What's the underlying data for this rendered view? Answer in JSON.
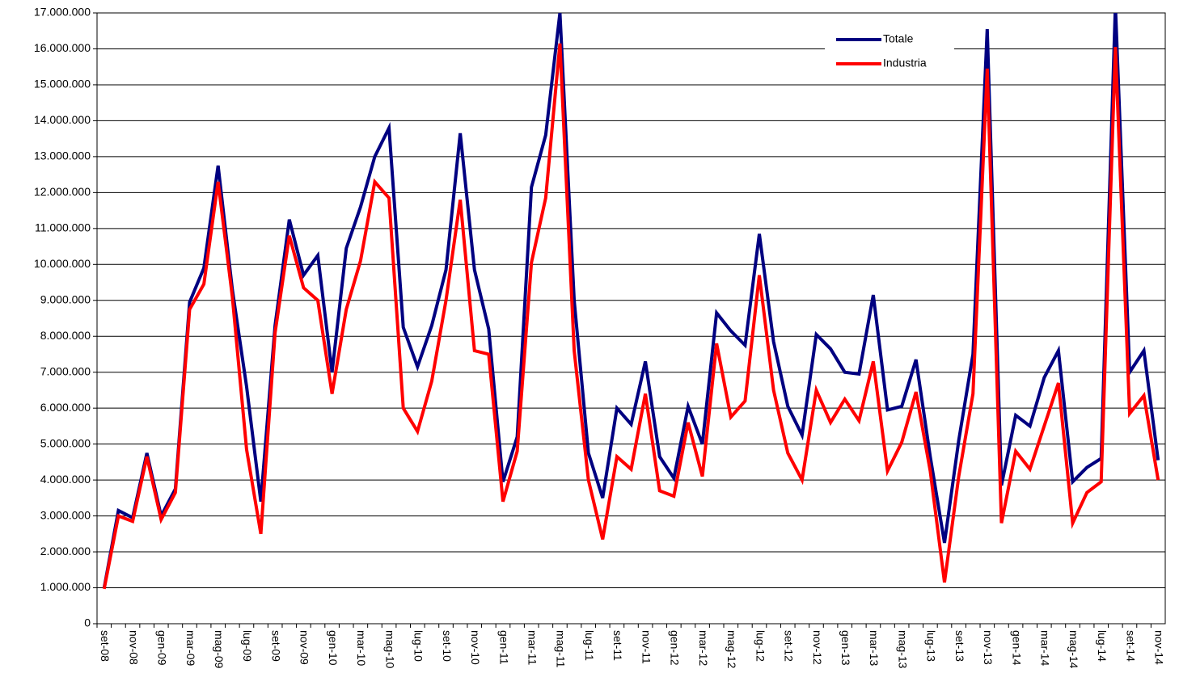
{
  "chart_data": {
    "type": "line",
    "categories": [
      "set-08",
      null,
      "nov-08",
      null,
      "gen-09",
      null,
      "mar-09",
      null,
      "mag-09",
      null,
      "lug-09",
      null,
      "set-09",
      null,
      "nov-09",
      null,
      "gen-10",
      null,
      "mar-10",
      null,
      "mag-10",
      null,
      "lug-10",
      null,
      "set-10",
      null,
      "nov-10",
      null,
      "gen-11",
      null,
      "mar-11",
      null,
      "mag-11",
      null,
      "lug-11",
      null,
      "set-11",
      null,
      "nov-11",
      null,
      "gen-12",
      null,
      "mar-12",
      null,
      "mag-12",
      null,
      "lug-12",
      null,
      "set-12",
      null,
      "nov-12",
      null,
      "gen-13",
      null,
      "mar-13",
      null,
      "mag-13",
      null,
      "lug-13",
      null,
      "set-13",
      null,
      "nov-13",
      null,
      "gen-14",
      null,
      "mar-14",
      null,
      "mag-14",
      null,
      "lug-14",
      null,
      "set-14",
      null,
      "nov-14"
    ],
    "series": [
      {
        "name": "Totale",
        "color": "#000080",
        "values": [
          1000000,
          3150000,
          2950000,
          4750000,
          3000000,
          3750000,
          8950000,
          9900000,
          12750000,
          9300000,
          6600000,
          3400000,
          8300000,
          11250000,
          9700000,
          10250000,
          7000000,
          10450000,
          11600000,
          13000000,
          13800000,
          8250000,
          7150000,
          8300000,
          9850000,
          13650000,
          9850000,
          8200000,
          3950000,
          5200000,
          12150000,
          13600000,
          17000000,
          9000000,
          4750000,
          3500000,
          6000000,
          5550000,
          7300000,
          4650000,
          4050000,
          6050000,
          5000000,
          8650000,
          8150000,
          7750000,
          10850000,
          7850000,
          6050000,
          5250000,
          8050000,
          7650000,
          7000000,
          6950000,
          9150000,
          5950000,
          6050000,
          7350000,
          4650000,
          2250000,
          5100000,
          7500000,
          16550000,
          3850000,
          5800000,
          5500000,
          6850000,
          7600000,
          3950000,
          4350000,
          4600000,
          17200000,
          7000000,
          7600000,
          4550000
        ]
      },
      {
        "name": "Industria",
        "color": "#ff0000",
        "values": [
          970000,
          3000000,
          2850000,
          4650000,
          2900000,
          3650000,
          8750000,
          9450000,
          12300000,
          9100000,
          4850000,
          2500000,
          8100000,
          10800000,
          9350000,
          9000000,
          6400000,
          8750000,
          10100000,
          12300000,
          11850000,
          6000000,
          5350000,
          6750000,
          9000000,
          11800000,
          7600000,
          7500000,
          3400000,
          4800000,
          10050000,
          11850000,
          16150000,
          7600000,
          4000000,
          2350000,
          4650000,
          4300000,
          6400000,
          3700000,
          3550000,
          5600000,
          4100000,
          7800000,
          5750000,
          6200000,
          9700000,
          6500000,
          4750000,
          4000000,
          6500000,
          5600000,
          6250000,
          5650000,
          7300000,
          4250000,
          5050000,
          6450000,
          4250000,
          1150000,
          4100000,
          6400000,
          15450000,
          2800000,
          4800000,
          4300000,
          5500000,
          6700000,
          2800000,
          3650000,
          3950000,
          16050000,
          5850000,
          6350000,
          4000000
        ]
      }
    ],
    "ylim": [
      0,
      17000000
    ],
    "yticks": [
      0,
      {
        "value": 1000000,
        "label": "1.000.000"
      },
      {
        "value": 2000000,
        "label": "2.000.000"
      },
      {
        "value": 3000000,
        "label": "3.000.000"
      },
      {
        "value": 4000000,
        "label": "4.000.000"
      },
      {
        "value": 5000000,
        "label": "5.000.000"
      },
      {
        "value": 6000000,
        "label": "6.000.000"
      },
      {
        "value": 7000000,
        "label": "7.000.000"
      },
      {
        "value": 8000000,
        "label": "8.000.000"
      },
      {
        "value": 9000000,
        "label": "9.000.000"
      },
      {
        "value": 10000000,
        "label": "10.000.000"
      },
      {
        "value": 11000000,
        "label": "11.000.000"
      },
      {
        "value": 12000000,
        "label": "12.000.000"
      },
      {
        "value": 13000000,
        "label": "13.000.000"
      },
      {
        "value": 14000000,
        "label": "14.000.000"
      },
      {
        "value": 15000000,
        "label": "15.000.000"
      },
      {
        "value": 16000000,
        "label": "16.000.000"
      },
      {
        "value": 17000000,
        "label": "17.000.000"
      }
    ],
    "grid": true,
    "legend": "top-right"
  }
}
